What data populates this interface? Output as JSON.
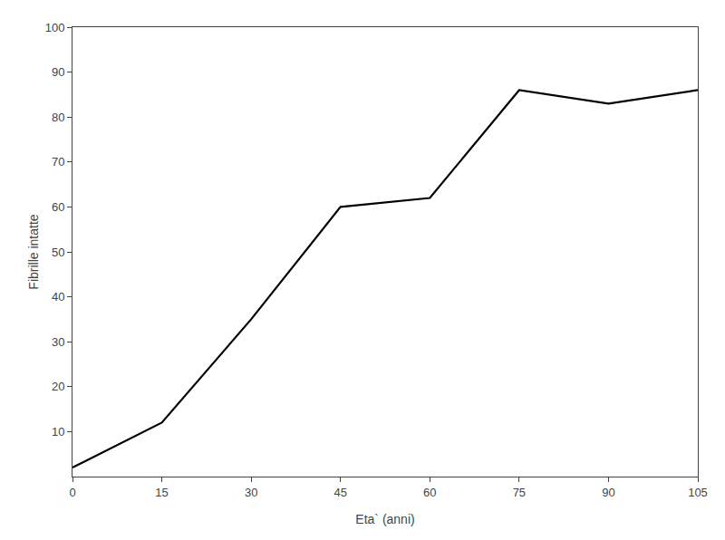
{
  "chart_data": {
    "type": "line",
    "x": [
      0,
      15,
      30,
      45,
      60,
      75,
      90,
      105
    ],
    "values": [
      2,
      12,
      35,
      60,
      62,
      86,
      83,
      86
    ],
    "xlabel": "Eta` (anni)",
    "ylabel": "Fibrille intatte",
    "xlim": [
      0,
      105
    ],
    "ylim": [
      0,
      100
    ],
    "xticks": [
      0,
      15,
      30,
      45,
      60,
      75,
      90,
      105
    ],
    "yticks": [
      10,
      20,
      30,
      40,
      50,
      60,
      70,
      80,
      90,
      100
    ],
    "color": "#000000",
    "grid": false
  }
}
